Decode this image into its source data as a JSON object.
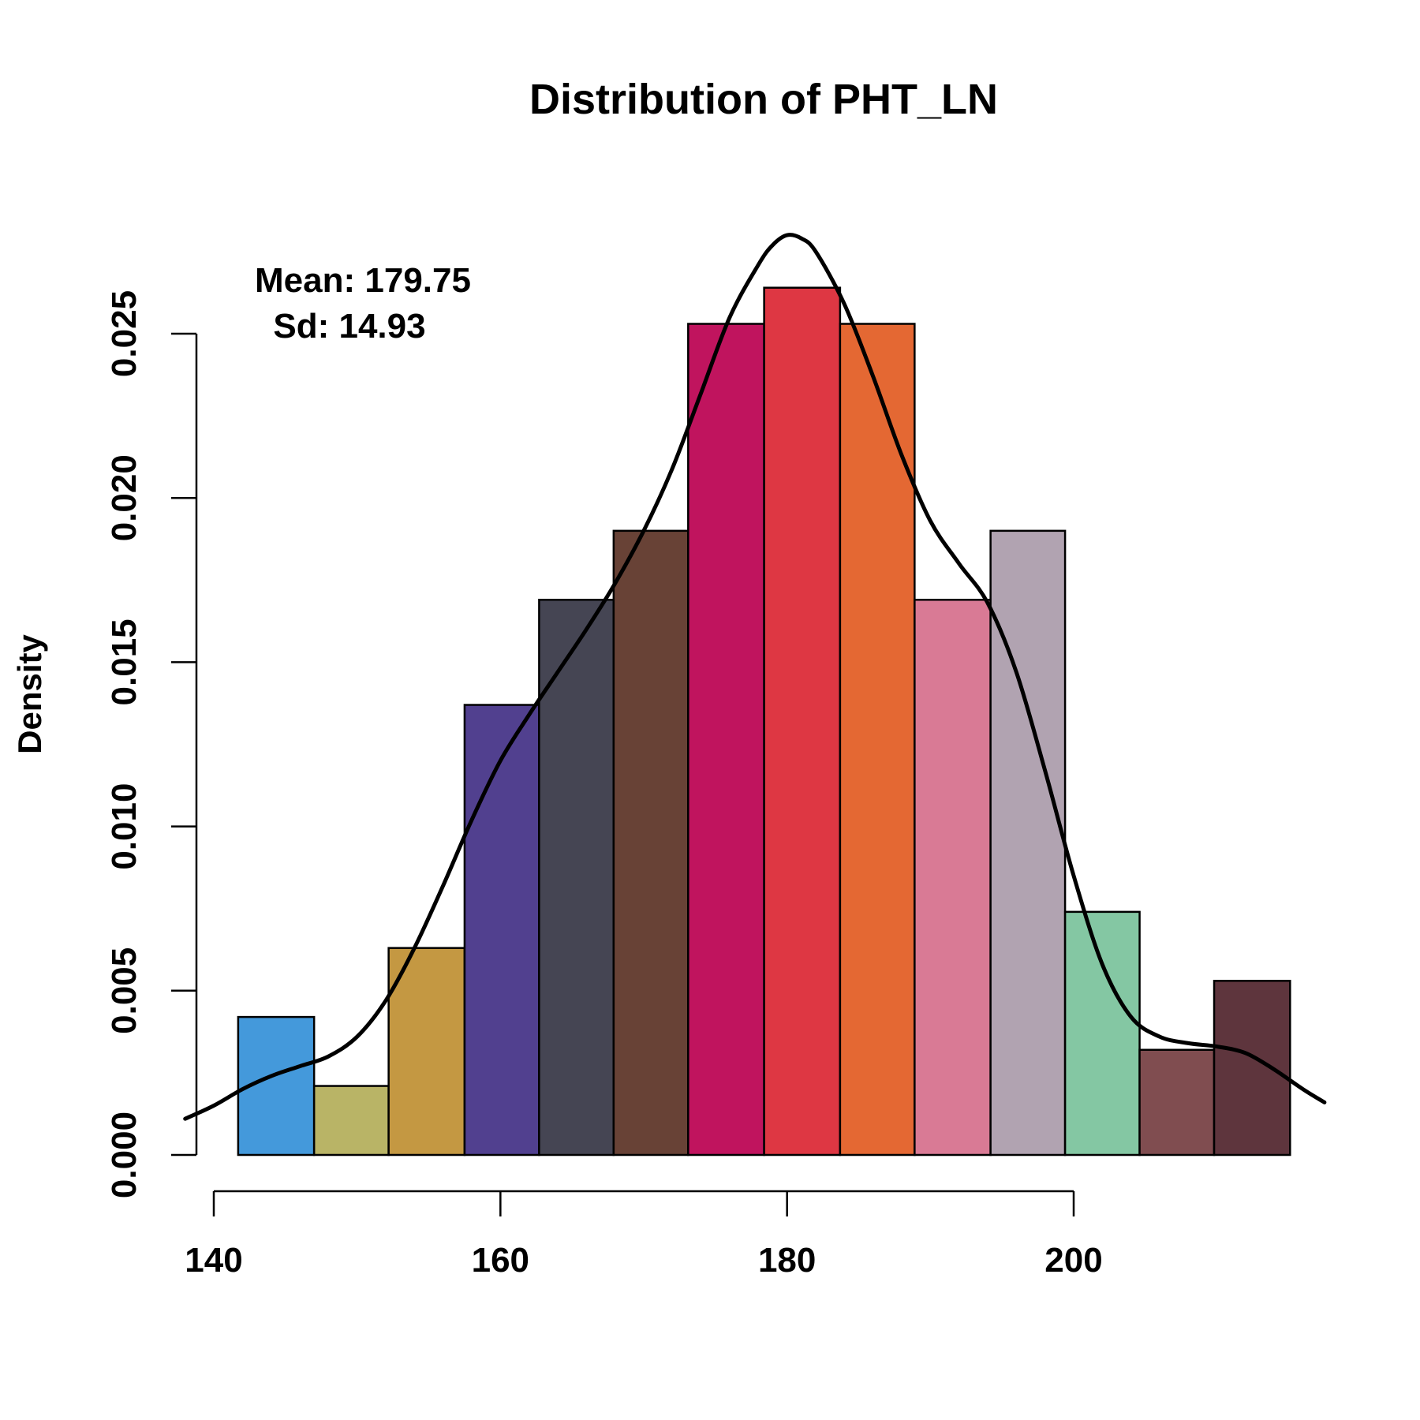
{
  "chart_data": {
    "type": "bar",
    "title": "Distribution of PHT_LN",
    "xlabel": "",
    "ylabel": "Density",
    "xlim": [
      138,
      218
    ],
    "ylim": [
      0,
      0.0295
    ],
    "x_ticks": [
      140,
      160,
      180,
      200
    ],
    "x_tick_labels": [
      "140",
      "160",
      "180",
      "200"
    ],
    "y_ticks": [
      0,
      0.005,
      0.01,
      0.015,
      0.02,
      0.025
    ],
    "y_tick_labels": [
      "0.000",
      "0.005",
      "0.010",
      "0.015",
      "0.020",
      "0.025"
    ],
    "grid": false,
    "bins": [
      {
        "x0": 141.7,
        "x1": 147.0,
        "density": 0.0042,
        "color": "#4499DB"
      },
      {
        "x0": 147.0,
        "x1": 152.2,
        "density": 0.0021,
        "color": "#B9B466"
      },
      {
        "x0": 152.2,
        "x1": 157.5,
        "density": 0.0063,
        "color": "#C49842"
      },
      {
        "x0": 157.5,
        "x1": 162.7,
        "density": 0.0137,
        "color": "#51408F"
      },
      {
        "x0": 162.7,
        "x1": 167.9,
        "density": 0.0169,
        "color": "#454553"
      },
      {
        "x0": 167.9,
        "x1": 173.1,
        "density": 0.019,
        "color": "#684236"
      },
      {
        "x0": 173.1,
        "x1": 178.4,
        "density": 0.0253,
        "color": "#C0145E"
      },
      {
        "x0": 178.4,
        "x1": 183.7,
        "density": 0.0264,
        "color": "#DE3743"
      },
      {
        "x0": 183.7,
        "x1": 188.9,
        "density": 0.0253,
        "color": "#E46833"
      },
      {
        "x0": 188.9,
        "x1": 194.2,
        "density": 0.0169,
        "color": "#D97A95"
      },
      {
        "x0": 194.2,
        "x1": 199.4,
        "density": 0.019,
        "color": "#B1A3B1"
      },
      {
        "x0": 199.4,
        "x1": 204.6,
        "density": 0.0074,
        "color": "#84C7A3"
      },
      {
        "x0": 204.6,
        "x1": 209.8,
        "density": 0.0032,
        "color": "#804D50"
      },
      {
        "x0": 209.8,
        "x1": 215.1,
        "density": 0.0053,
        "color": "#5E353D"
      }
    ],
    "density_curve": {
      "x": [
        138,
        140,
        142,
        144,
        146,
        148,
        150,
        152,
        154,
        156,
        158,
        160,
        162,
        164,
        166,
        168,
        170,
        172,
        174,
        176,
        178,
        179,
        180,
        181,
        182,
        184,
        186,
        188,
        190,
        192,
        194,
        196,
        198,
        200,
        202,
        204,
        206,
        208,
        210,
        212,
        214,
        216,
        217.5
      ],
      "y": [
        0.0011,
        0.0015,
        0.002,
        0.0024,
        0.0027,
        0.003,
        0.0036,
        0.0047,
        0.0063,
        0.0082,
        0.0102,
        0.012,
        0.0134,
        0.0147,
        0.016,
        0.0174,
        0.019,
        0.0209,
        0.0232,
        0.0255,
        0.0271,
        0.0277,
        0.028,
        0.0279,
        0.0275,
        0.0259,
        0.0237,
        0.0213,
        0.0193,
        0.018,
        0.0168,
        0.0147,
        0.0117,
        0.0085,
        0.0058,
        0.0042,
        0.0036,
        0.0034,
        0.0033,
        0.0031,
        0.0026,
        0.002,
        0.0016
      ]
    },
    "annotations": [
      "Mean: 179.75",
      "Sd: 14.93"
    ]
  }
}
